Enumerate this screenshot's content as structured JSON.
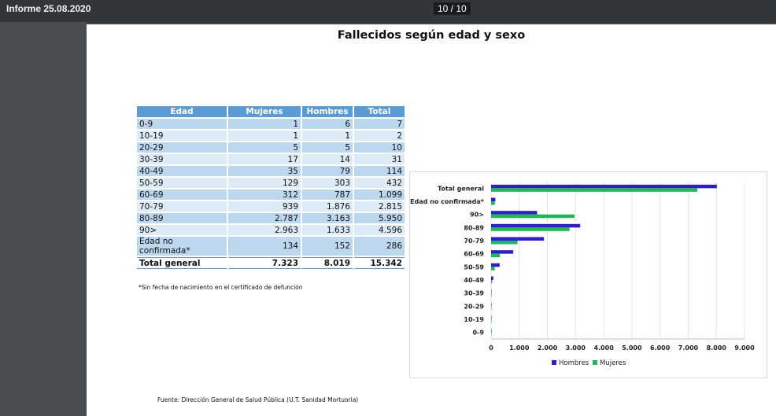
{
  "viewer": {
    "title": "Informe 25.08.2020",
    "page_indicator": "10 / 10"
  },
  "heading": "Fallecidos según edad y sexo",
  "table": {
    "headers": [
      "Edad",
      "Mujeres",
      "Hombres",
      "Total"
    ],
    "rows": [
      [
        "0-9",
        "1",
        "6",
        "7"
      ],
      [
        "10-19",
        "1",
        "1",
        "2"
      ],
      [
        "20-29",
        "5",
        "5",
        "10"
      ],
      [
        "30-39",
        "17",
        "14",
        "31"
      ],
      [
        "40-49",
        "35",
        "79",
        "114"
      ],
      [
        "50-59",
        "129",
        "303",
        "432"
      ],
      [
        "60-69",
        "312",
        "787",
        "1.099"
      ],
      [
        "70-79",
        "939",
        "1.876",
        "2.815"
      ],
      [
        "80-89",
        "2.787",
        "3.163",
        "5.950"
      ],
      [
        "90>",
        "2.963",
        "1.633",
        "4.596"
      ],
      [
        "Edad no confirmada*",
        "134",
        "152",
        "286"
      ]
    ],
    "total_row": [
      "Total general",
      "7.323",
      "8.019",
      "15.342"
    ]
  },
  "footnote": "*Sin fecha de nacimiento en el certificado de defunción",
  "source": "Fuente: Dirección General de Salud Pública (U.T. Sanidad Mortuoria)",
  "chart_data": {
    "type": "bar",
    "orientation": "horizontal",
    "categories": [
      "Total general",
      "Edad no confirmada*",
      "90>",
      "80-89",
      "70-79",
      "60-69",
      "50-59",
      "40-49",
      "30-39",
      "20-29",
      "10-19",
      "0-9"
    ],
    "series": [
      {
        "name": "Hombres",
        "color": "#2e1fc8",
        "values": [
          8019,
          152,
          1633,
          3163,
          1876,
          787,
          303,
          79,
          14,
          5,
          1,
          6
        ]
      },
      {
        "name": "Mujeres",
        "color": "#22b55a",
        "values": [
          7323,
          134,
          2963,
          2787,
          939,
          312,
          129,
          35,
          17,
          5,
          1,
          1
        ]
      }
    ],
    "xlim": [
      0,
      9000
    ],
    "x_ticks": [
      "0",
      "1.000",
      "2.000",
      "3.000",
      "4.000",
      "5.000",
      "6.000",
      "7.000",
      "8.000",
      "9.000"
    ],
    "grid": true,
    "legend_position": "bottom"
  }
}
